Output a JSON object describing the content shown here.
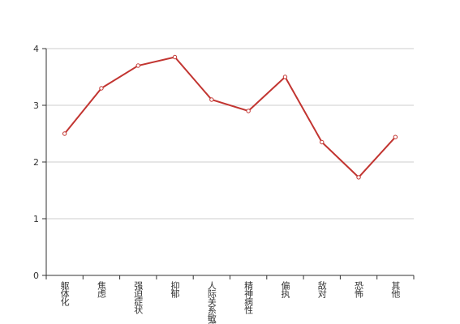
{
  "chart_data": {
    "type": "line",
    "categories": [
      "躯体化",
      "焦虑",
      "强迫症状",
      "抑郁",
      "人际关系敏感",
      "精神病性",
      "偏执",
      "敌对",
      "恐怖",
      "其他"
    ],
    "values": [
      2.5,
      3.3,
      3.7,
      3.85,
      3.1,
      2.9,
      3.5,
      2.35,
      1.73,
      2.44
    ],
    "color": "#c23531",
    "ylim": [
      0,
      4
    ],
    "yticks": [
      0,
      1,
      2,
      3,
      4
    ],
    "grid": true
  }
}
